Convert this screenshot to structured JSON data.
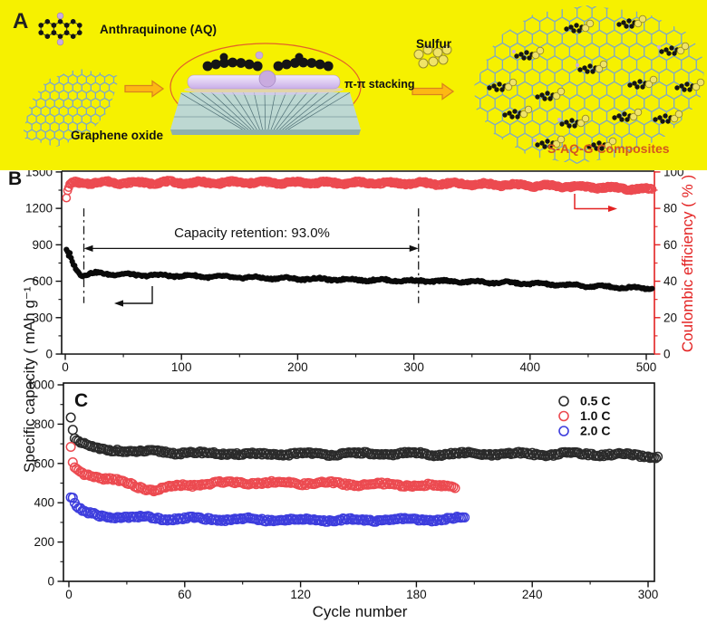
{
  "figure": {
    "panelA": {
      "label": "A",
      "anthraquinone_label": "Anthraquinone (AQ)",
      "graphene_oxide_label": "Graphene oxide",
      "pi_stacking_label": "π-π stacking",
      "sulfur_label": "Sulfur",
      "composites_label": "S-AQ-G Composites",
      "colors": {
        "background": "#F6F100",
        "arrow_fill": "#FDB813",
        "arrow_outline": "#D9821E",
        "graphene_mesh": "#7EA8C6",
        "sulfur_ball": "#F0E468",
        "sulfur_ball_outline": "#978C26",
        "molecule_carbon": "#151515",
        "molecule_oxygen": "#C9ABDF",
        "ellipse_outline": "#E2622A",
        "slab_top": "#F2EAFC",
        "slab_bottom": "#C9AEE8",
        "platform": "#BDD8D2",
        "platform_lines": "#33555E",
        "composites_label_color": "#D4571E"
      }
    },
    "shared_ylabel": "Specific capacity ( mAh g⁻¹ )",
    "panelB": {
      "label": "B"
    },
    "panelC": {
      "label": "C"
    },
    "axis_red": "#E32222"
  },
  "chart_data": [
    {
      "type": "scatter",
      "panel": "B",
      "xlabel": "",
      "ylabel_left": "Specific capacity ( mAh g⁻¹ )",
      "ylabel_right": "Coulombic efficiency ( % )",
      "xlim": [
        0,
        507
      ],
      "xticks": [
        0,
        100,
        200,
        300,
        400,
        500
      ],
      "x_minor_step": 50,
      "ylim_left": [
        0,
        1500
      ],
      "yticks_left": [
        0,
        300,
        600,
        900,
        1200,
        1500
      ],
      "y_left_minor_step": 150,
      "ylim_right": [
        0,
        100
      ],
      "yticks_right": [
        0,
        20,
        40,
        60,
        80,
        100
      ],
      "y_right_minor_step": 10,
      "grid": false,
      "annotations": {
        "retention_text": "Capacity retention: 93.0%",
        "retention_span_cycles": [
          16,
          304
        ],
        "retention_arrow_value": 870,
        "dashdot_value_range": [
          420,
          1200
        ]
      },
      "series": [
        {
          "name": "Coulombic efficiency",
          "axis": "right",
          "marker": "open-circle",
          "color": "#EC4A50",
          "x_range": [
            1,
            505
          ],
          "points": [
            [
              1,
              86
            ],
            [
              2,
              89
            ],
            [
              3,
              91
            ],
            [
              4,
              92.5
            ],
            [
              5,
              93.5
            ],
            [
              8,
              94
            ],
            [
              15,
              93.8
            ],
            [
              25,
              94.2
            ],
            [
              40,
              94.3
            ],
            [
              60,
              94
            ],
            [
              90,
              94.3
            ],
            [
              120,
              94
            ],
            [
              150,
              94.3
            ],
            [
              180,
              94.1
            ],
            [
              210,
              94.2
            ],
            [
              240,
              94
            ],
            [
              270,
              93.9
            ],
            [
              300,
              93.8
            ],
            [
              330,
              93.5
            ],
            [
              360,
              93.2
            ],
            [
              390,
              92.8
            ],
            [
              420,
              92.3
            ],
            [
              450,
              91.8
            ],
            [
              475,
              91.2
            ],
            [
              490,
              90.8
            ],
            [
              505,
              90.4
            ]
          ]
        },
        {
          "name": "Specific capacity",
          "axis": "left",
          "marker": "filled-circle",
          "color": "#0A0A0A",
          "x_range": [
            1,
            505
          ],
          "points": [
            [
              1,
              855
            ],
            [
              2,
              840
            ],
            [
              3,
              798
            ],
            [
              4,
              828
            ],
            [
              5,
              786
            ],
            [
              6,
              760
            ],
            [
              7,
              742
            ],
            [
              8,
              728
            ],
            [
              9,
              712
            ],
            [
              10,
              698
            ],
            [
              11,
              682
            ],
            [
              12,
              670
            ],
            [
              13,
              662
            ],
            [
              15,
              650
            ],
            [
              18,
              655
            ],
            [
              22,
              662
            ],
            [
              28,
              666
            ],
            [
              35,
              662
            ],
            [
              45,
              658
            ],
            [
              60,
              652
            ],
            [
              80,
              648
            ],
            [
              100,
              645
            ],
            [
              125,
              638
            ],
            [
              150,
              632
            ],
            [
              175,
              626
            ],
            [
              200,
              621
            ],
            [
              225,
              616
            ],
            [
              250,
              612
            ],
            [
              275,
              608
            ],
            [
              295,
              605
            ],
            [
              302,
              598
            ],
            [
              306,
              604
            ],
            [
              325,
              600
            ],
            [
              350,
              595
            ],
            [
              375,
              589
            ],
            [
              400,
              581
            ],
            [
              425,
              571
            ],
            [
              450,
              561
            ],
            [
              475,
              551
            ],
            [
              490,
              546
            ],
            [
              505,
              541
            ]
          ]
        }
      ]
    },
    {
      "type": "scatter",
      "panel": "C",
      "xlabel": "Cycle number",
      "ylabel": "Specific capacity ( mAh g⁻¹ )",
      "xlim": [
        0,
        303
      ],
      "xticks": [
        0,
        60,
        120,
        180,
        240,
        300
      ],
      "x_minor_step": 30,
      "ylim": [
        0,
        1000
      ],
      "yticks": [
        0,
        200,
        400,
        600,
        800,
        1000
      ],
      "y_minor_step": 100,
      "grid": false,
      "legend": [
        {
          "label": "0.5 C",
          "color": "#2B2B2B"
        },
        {
          "label": "1.0 C",
          "color": "#EC4A50"
        },
        {
          "label": "2.0 C",
          "color": "#3D3DDD"
        }
      ],
      "series": [
        {
          "name": "0.5 C",
          "marker": "open-circle",
          "color": "#2B2B2B",
          "x_range": [
            1,
            305
          ],
          "points": [
            [
              1,
              845
            ],
            [
              2,
              780
            ],
            [
              3,
              730
            ],
            [
              4,
              718
            ],
            [
              5,
              712
            ],
            [
              7,
              702
            ],
            [
              10,
              690
            ],
            [
              13,
              675
            ],
            [
              16,
              668
            ],
            [
              20,
              667
            ],
            [
              25,
              670
            ],
            [
              30,
              664
            ],
            [
              40,
              657
            ],
            [
              50,
              660
            ],
            [
              60,
              654
            ],
            [
              70,
              650
            ],
            [
              80,
              652
            ],
            [
              90,
              648
            ],
            [
              100,
              645
            ],
            [
              110,
              648
            ],
            [
              120,
              650
            ],
            [
              130,
              647
            ],
            [
              140,
              651
            ],
            [
              150,
              649
            ],
            [
              160,
              647
            ],
            [
              170,
              651
            ],
            [
              180,
              649
            ],
            [
              190,
              647
            ],
            [
              200,
              650
            ],
            [
              210,
              647
            ],
            [
              220,
              649
            ],
            [
              230,
              647
            ],
            [
              240,
              649
            ],
            [
              250,
              647
            ],
            [
              260,
              650
            ],
            [
              270,
              648
            ],
            [
              280,
              645
            ],
            [
              290,
              641
            ],
            [
              300,
              638
            ],
            [
              305,
              636
            ]
          ]
        },
        {
          "name": "1.0 C",
          "marker": "open-circle",
          "color": "#EC4A50",
          "x_range": [
            1,
            200
          ],
          "points": [
            [
              1,
              678
            ],
            [
              2,
              598
            ],
            [
              3,
              572
            ],
            [
              5,
              558
            ],
            [
              8,
              548
            ],
            [
              11,
              543
            ],
            [
              15,
              530
            ],
            [
              20,
              520
            ],
            [
              25,
              512
            ],
            [
              30,
              500
            ],
            [
              35,
              486
            ],
            [
              40,
              472
            ],
            [
              44,
              464
            ],
            [
              48,
              470
            ],
            [
              55,
              481
            ],
            [
              60,
              489
            ],
            [
              70,
              496
            ],
            [
              80,
              501
            ],
            [
              90,
              505
            ],
            [
              100,
              502
            ],
            [
              110,
              500
            ],
            [
              120,
              501
            ],
            [
              130,
              499
            ],
            [
              140,
              497
            ],
            [
              150,
              494
            ],
            [
              160,
              492
            ],
            [
              170,
              490
            ],
            [
              180,
              491
            ],
            [
              185,
              488
            ],
            [
              190,
              486
            ],
            [
              195,
              483
            ],
            [
              200,
              479
            ]
          ]
        },
        {
          "name": "2.0 C",
          "marker": "open-circle",
          "color": "#3D3DDD",
          "x_range": [
            1,
            205
          ],
          "points": [
            [
              1,
              432
            ],
            [
              2,
              424
            ],
            [
              3,
              394
            ],
            [
              5,
              371
            ],
            [
              8,
              351
            ],
            [
              12,
              339
            ],
            [
              16,
              333
            ],
            [
              20,
              331
            ],
            [
              25,
              329
            ],
            [
              30,
              327
            ],
            [
              40,
              324
            ],
            [
              50,
              321
            ],
            [
              60,
              319
            ],
            [
              80,
              317
            ],
            [
              100,
              314
            ],
            [
              120,
              312
            ],
            [
              140,
              312
            ],
            [
              160,
              313
            ],
            [
              180,
              314
            ],
            [
              190,
              316
            ],
            [
              200,
              318
            ],
            [
              205,
              318
            ]
          ]
        }
      ]
    }
  ]
}
